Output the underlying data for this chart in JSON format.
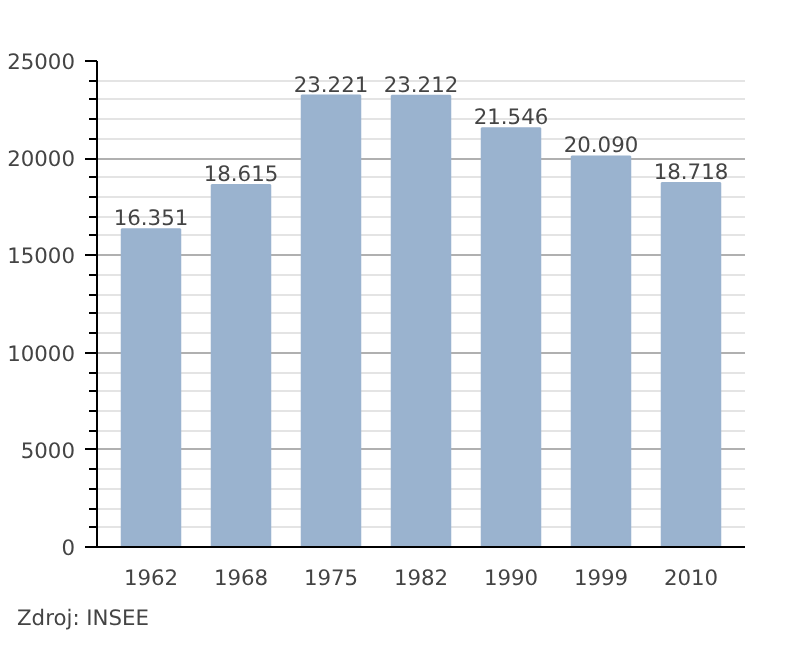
{
  "chart_data": {
    "type": "bar",
    "categories": [
      "1962",
      "1968",
      "1975",
      "1982",
      "1990",
      "1999",
      "2010"
    ],
    "values": [
      16351,
      18615,
      23221,
      23212,
      21546,
      20090,
      18718
    ],
    "value_labels": [
      "16.351",
      "18.615",
      "23.221",
      "23.212",
      "21.546",
      "20.090",
      "18.718"
    ],
    "color": "#9ab3cf",
    "ylim": [
      0,
      25000
    ],
    "yticks": [
      0,
      5000,
      10000,
      15000,
      20000,
      25000
    ],
    "grid": "y",
    "annotations": [
      "Zdroj: INSEE"
    ]
  }
}
